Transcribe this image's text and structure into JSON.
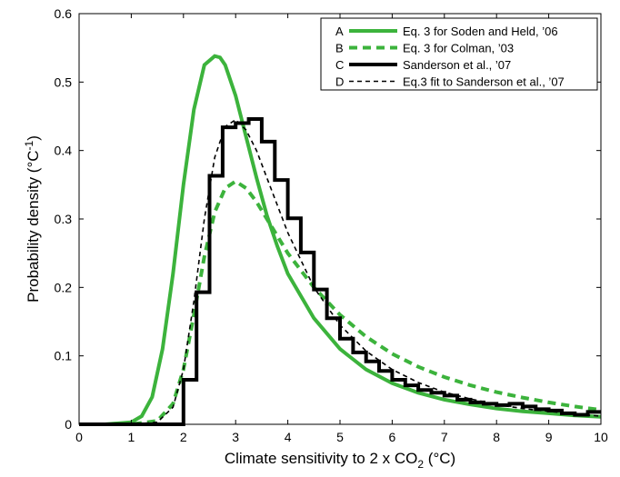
{
  "chart_data": {
    "type": "line",
    "xlabel": "Climate sensitivity to 2 x CO",
    "xlabel_sub": "2",
    "xlabel_unit": " (°C)",
    "ylabel": "Probability density (°C",
    "ylabel_sup": "-1",
    "ylabel_end": ")",
    "xlim": [
      0,
      10
    ],
    "ylim": [
      0,
      0.6
    ],
    "xticks": [
      "0",
      "1",
      "2",
      "3",
      "4",
      "5",
      "6",
      "7",
      "8",
      "9",
      "10"
    ],
    "yticks": [
      "0",
      "0.1",
      "0.2",
      "0.3",
      "0.4",
      "0.5",
      "0.6"
    ],
    "grid": false,
    "legend_position": "top-right",
    "series": [
      {
        "letter": "A",
        "name": "Eq. 3 for Soden and Held, ’06",
        "color": "#3cb33c",
        "style": "solid",
        "x": [
          0,
          0.5,
          1.0,
          1.2,
          1.4,
          1.6,
          1.8,
          2.0,
          2.2,
          2.4,
          2.6,
          2.7,
          2.8,
          3.0,
          3.2,
          3.4,
          3.6,
          3.8,
          4.0,
          4.5,
          5.0,
          5.5,
          6.0,
          6.5,
          7.0,
          7.5,
          8.0,
          8.5,
          9.0,
          9.5,
          10.0
        ],
        "y": [
          0,
          0.0,
          0.003,
          0.012,
          0.04,
          0.11,
          0.22,
          0.35,
          0.46,
          0.525,
          0.538,
          0.536,
          0.525,
          0.48,
          0.42,
          0.36,
          0.305,
          0.26,
          0.22,
          0.155,
          0.11,
          0.08,
          0.06,
          0.046,
          0.036,
          0.029,
          0.023,
          0.019,
          0.016,
          0.013,
          0.011
        ]
      },
      {
        "letter": "B",
        "name": "Eq. 3 for Colman, ’03",
        "color": "#3cb33c",
        "style": "dashed",
        "x": [
          0,
          1.0,
          1.5,
          1.8,
          2.0,
          2.2,
          2.4,
          2.6,
          2.8,
          3.0,
          3.2,
          3.4,
          3.6,
          3.8,
          4.0,
          4.5,
          5.0,
          5.5,
          6.0,
          6.5,
          7.0,
          7.5,
          8.0,
          8.5,
          9.0,
          9.5,
          10.0
        ],
        "y": [
          0,
          0.0,
          0.005,
          0.03,
          0.08,
          0.16,
          0.245,
          0.31,
          0.345,
          0.355,
          0.345,
          0.325,
          0.3,
          0.275,
          0.25,
          0.2,
          0.16,
          0.128,
          0.103,
          0.084,
          0.069,
          0.057,
          0.047,
          0.039,
          0.032,
          0.026,
          0.021
        ]
      },
      {
        "letter": "C",
        "name": "Sanderson et al., ’07",
        "color": "#000000",
        "style": "step",
        "x": [
          0,
          1.5,
          2.0,
          2.25,
          2.5,
          2.75,
          3.0,
          3.25,
          3.5,
          3.75,
          4.0,
          4.25,
          4.5,
          4.75,
          5.0,
          5.25,
          5.5,
          5.75,
          6.0,
          6.25,
          6.5,
          6.75,
          7.0,
          7.25,
          7.5,
          7.75,
          8.0,
          8.25,
          8.5,
          8.75,
          9.0,
          9.25,
          9.5,
          9.75
        ],
        "y": [
          0,
          0,
          0.065,
          0.193,
          0.363,
          0.434,
          0.44,
          0.446,
          0.413,
          0.357,
          0.301,
          0.251,
          0.197,
          0.155,
          0.125,
          0.105,
          0.092,
          0.078,
          0.065,
          0.057,
          0.05,
          0.046,
          0.042,
          0.036,
          0.032,
          0.03,
          0.028,
          0.03,
          0.026,
          0.022,
          0.02,
          0.016,
          0.014,
          0.018
        ],
        "x_end": 10.0
      },
      {
        "letter": "D",
        "name": "Eq.3 fit to Sanderson et al., ’07",
        "color": "#000000",
        "style": "thin-dashed",
        "x": [
          0,
          1.0,
          1.5,
          1.8,
          2.0,
          2.2,
          2.4,
          2.6,
          2.8,
          3.0,
          3.2,
          3.4,
          3.6,
          3.8,
          4.0,
          4.5,
          5.0,
          5.5,
          6.0,
          6.5,
          7.0,
          7.5,
          8.0,
          8.5,
          9.0,
          9.5,
          10.0
        ],
        "y": [
          0,
          0.0,
          0.003,
          0.025,
          0.08,
          0.18,
          0.3,
          0.39,
          0.435,
          0.445,
          0.43,
          0.4,
          0.36,
          0.32,
          0.28,
          0.2,
          0.145,
          0.107,
          0.08,
          0.061,
          0.047,
          0.037,
          0.029,
          0.023,
          0.019,
          0.015,
          0.012
        ]
      }
    ]
  }
}
